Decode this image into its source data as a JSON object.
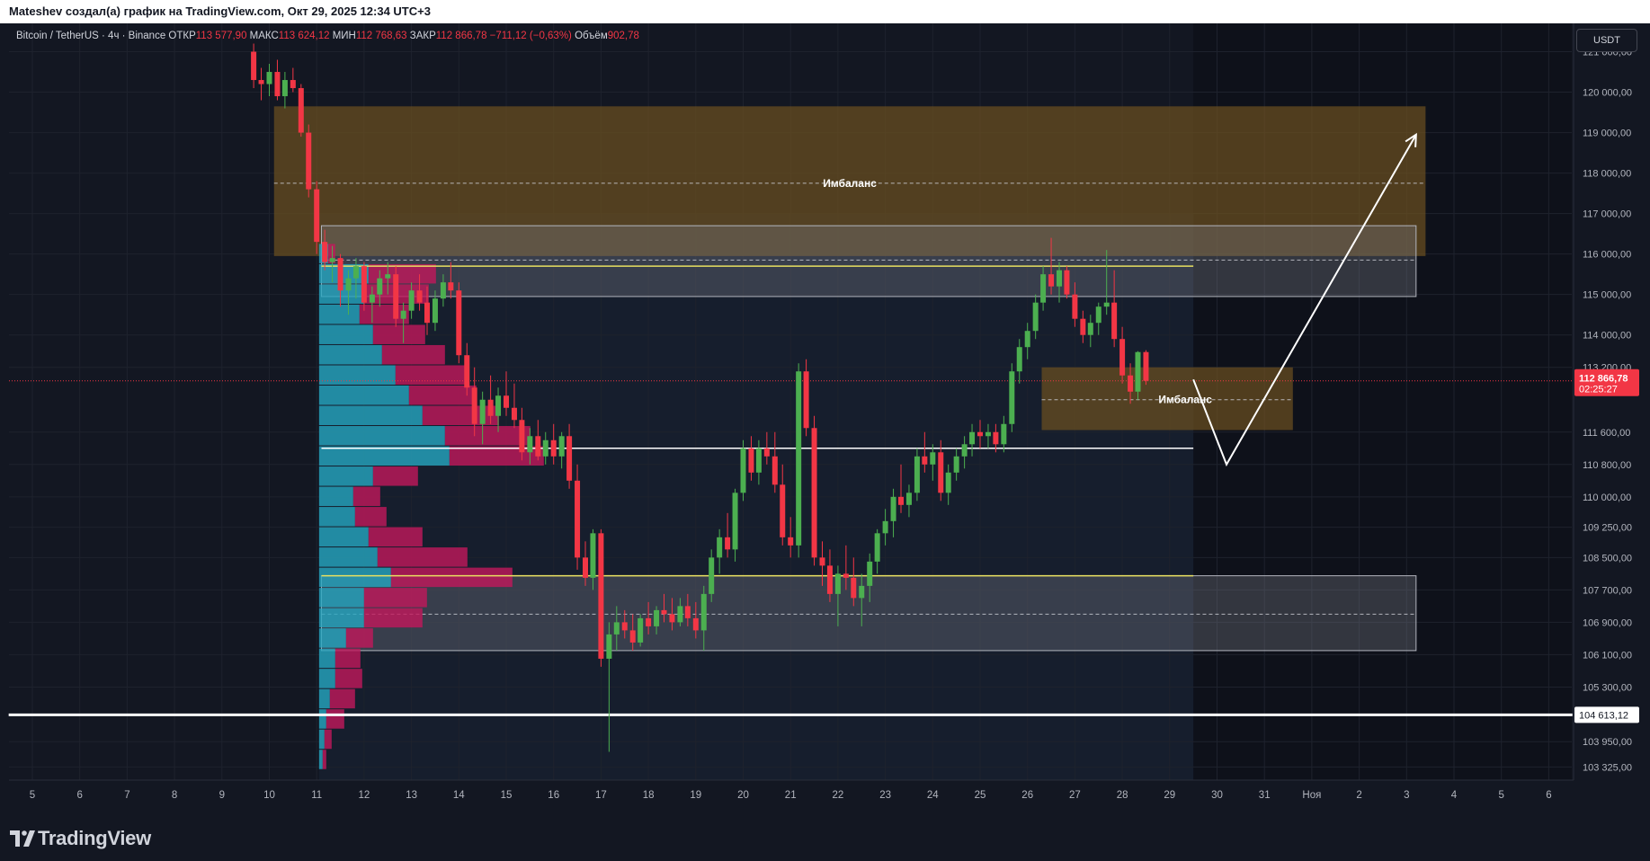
{
  "header": {
    "attribution": "Mateshev создал(а) график на TradingView.com, Окт 29, 2025 12:34 UTC+3"
  },
  "legend": {
    "symbol": "Bitcoin / TetherUS · 4ч · Binance",
    "open_label": "ОТКР",
    "open_value": "113 577,90",
    "high_label": "МАКС",
    "high_value": "113 624,12",
    "low_label": "МИН",
    "low_value": "112 768,63",
    "close_label": "ЗАКР",
    "close_value": "112 866,78",
    "change": "−711,12 (−0,63%)",
    "volume_label": "Объём",
    "volume_value": "902,78"
  },
  "currency_button": "USDT",
  "price_badge": {
    "value": "112 866,78",
    "timer": "02:25:27"
  },
  "support_badge": "104 613,12",
  "footer": {
    "brand": "TradingView"
  },
  "colors": {
    "up": "#4caf50",
    "down": "#f23645",
    "background": "#131722",
    "zone": "#6b4f20",
    "gray_zone": "#787b86",
    "vp_up": "#26a6c0",
    "vp_down": "#c2185b"
  },
  "chart_data": {
    "type": "candlestick",
    "timeframe": "4ч",
    "ylim": [
      103000,
      121700
    ],
    "y_ticks": [
      "121 000,00",
      "120 000,00",
      "119 000,00",
      "118 000,00",
      "117 000,00",
      "116 000,00",
      "115 000,00",
      "114 000,00",
      "113 200,00",
      "111 600,00",
      "110 800,00",
      "110 000,00",
      "109 250,00",
      "108 500,00",
      "107 700,00",
      "106 900,00",
      "106 100,00",
      "105 300,00",
      "103 950,00",
      "103 325,00"
    ],
    "y_tick_values": [
      121000,
      120000,
      119000,
      118000,
      117000,
      116000,
      115000,
      114000,
      113200,
      111600,
      110800,
      110000,
      109250,
      108500,
      107700,
      106900,
      106100,
      105300,
      103950,
      103325
    ],
    "x_ticks": [
      "5",
      "6",
      "7",
      "8",
      "9",
      "10",
      "11",
      "12",
      "13",
      "14",
      "15",
      "16",
      "17",
      "18",
      "19",
      "20",
      "21",
      "22",
      "23",
      "24",
      "25",
      "26",
      "27",
      "28",
      "29",
      "30",
      "31",
      "Ноя",
      "2",
      "3",
      "4",
      "5",
      "6"
    ],
    "x_tick_days": [
      5,
      6,
      7,
      8,
      9,
      10,
      11,
      12,
      13,
      14,
      15,
      16,
      17,
      18,
      19,
      20,
      21,
      22,
      23,
      24,
      25,
      26,
      27,
      28,
      29,
      30,
      31,
      32,
      33,
      34,
      35,
      36,
      37
    ],
    "current_price": 112866.78,
    "support_level": 104613.12,
    "zones": [
      {
        "label": "Имбаланс",
        "x_start": 10.1,
        "x_end": 34.4,
        "top": 119650,
        "bottom": 115950,
        "mid": 117750,
        "color": "brown"
      },
      {
        "label": "",
        "x_start": 11.1,
        "x_end": 34.2,
        "top": 116700,
        "bottom": 114950,
        "mid": 115850,
        "color": "gray"
      },
      {
        "label": "Имбаланс",
        "x_start": 26.3,
        "x_end": 31.6,
        "top": 113200,
        "bottom": 111650,
        "mid": 112400,
        "color": "brown"
      },
      {
        "label": "",
        "x_start": 11.1,
        "x_end": 34.2,
        "top": 108050,
        "bottom": 106200,
        "mid": 107100,
        "color": "gray"
      }
    ],
    "lines": [
      {
        "y": 115700,
        "x_start": 11.1,
        "x_end": 29.5,
        "color": "yellow"
      },
      {
        "y": 111200,
        "x_start": 11.1,
        "x_end": 29.5,
        "color": "white"
      },
      {
        "y": 108050,
        "x_start": 11.1,
        "x_end": 29.5,
        "color": "yellow"
      },
      {
        "y": 104613.12,
        "x_start": 4.5,
        "x_end": 37.5,
        "color": "white"
      }
    ],
    "projection": [
      [
        29.5,
        112900
      ],
      [
        30.2,
        110800
      ],
      [
        34.2,
        118950
      ]
    ],
    "candles": [
      [
        9.67,
        121000,
        121200,
        120100,
        120300
      ],
      [
        9.83,
        120300,
        120600,
        119800,
        120200
      ],
      [
        10.0,
        120200,
        120700,
        119900,
        120500
      ],
      [
        10.17,
        120500,
        120800,
        119800,
        119900
      ],
      [
        10.33,
        119900,
        120500,
        119600,
        120300
      ],
      [
        10.5,
        120300,
        120600,
        120000,
        120100
      ],
      [
        10.67,
        120100,
        120200,
        118900,
        119000
      ],
      [
        10.83,
        119000,
        119200,
        117400,
        117600
      ],
      [
        11.0,
        117600,
        117800,
        116000,
        116300
      ],
      [
        11.17,
        116300,
        116600,
        115600,
        115800
      ],
      [
        11.33,
        115800,
        116200,
        115300,
        115900
      ],
      [
        11.5,
        115900,
        116000,
        114700,
        115100
      ],
      [
        11.67,
        115100,
        115600,
        114500,
        115400
      ],
      [
        11.83,
        115400,
        115900,
        114900,
        115700
      ],
      [
        12.0,
        115700,
        115800,
        114600,
        114800
      ],
      [
        12.17,
        114800,
        115200,
        114300,
        115000
      ],
      [
        12.33,
        115000,
        115600,
        114700,
        115400
      ],
      [
        12.5,
        115400,
        115800,
        115000,
        115500
      ],
      [
        12.67,
        115500,
        115700,
        114200,
        114400
      ],
      [
        12.83,
        114400,
        114800,
        113800,
        114600
      ],
      [
        13.0,
        114600,
        115300,
        114400,
        115100
      ],
      [
        13.17,
        115100,
        115500,
        114600,
        114800
      ],
      [
        13.33,
        114800,
        115200,
        114000,
        114300
      ],
      [
        13.5,
        114300,
        115100,
        114100,
        114900
      ],
      [
        13.67,
        114900,
        115500,
        114700,
        115300
      ],
      [
        13.83,
        115300,
        115800,
        114900,
        115100
      ],
      [
        14.0,
        115100,
        115300,
        113300,
        113500
      ],
      [
        14.17,
        113500,
        113800,
        112500,
        112700
      ],
      [
        14.33,
        112700,
        113200,
        111500,
        111800
      ],
      [
        14.5,
        111800,
        112600,
        111300,
        112400
      ],
      [
        14.67,
        112400,
        113000,
        111800,
        112000
      ],
      [
        14.83,
        112000,
        112700,
        111600,
        112500
      ],
      [
        15.0,
        112500,
        113100,
        112000,
        112200
      ],
      [
        15.17,
        112200,
        112800,
        111700,
        111900
      ],
      [
        15.33,
        111900,
        112200,
        110900,
        111100
      ],
      [
        15.5,
        111100,
        111700,
        110800,
        111500
      ],
      [
        15.67,
        111500,
        111900,
        110900,
        111000
      ],
      [
        15.83,
        111000,
        111600,
        110800,
        111400
      ],
      [
        16.0,
        111400,
        111800,
        110800,
        111000
      ],
      [
        16.17,
        111000,
        111600,
        110700,
        111500
      ],
      [
        16.33,
        111500,
        111800,
        110200,
        110400
      ],
      [
        16.5,
        110400,
        110800,
        108200,
        108500
      ],
      [
        16.67,
        108500,
        108900,
        107800,
        108000
      ],
      [
        16.83,
        108000,
        109200,
        107700,
        109100
      ],
      [
        17.0,
        109100,
        109200,
        105800,
        106000
      ],
      [
        17.17,
        106000,
        106900,
        103700,
        106600
      ],
      [
        17.33,
        106600,
        107300,
        106200,
        106900
      ],
      [
        17.5,
        106900,
        107200,
        106500,
        106700
      ],
      [
        17.67,
        106700,
        107100,
        106200,
        106400
      ],
      [
        17.83,
        106400,
        107100,
        106300,
        107000
      ],
      [
        18.0,
        107000,
        107400,
        106600,
        106800
      ],
      [
        18.17,
        106800,
        107300,
        106600,
        107200
      ],
      [
        18.33,
        107200,
        107600,
        106900,
        107100
      ],
      [
        18.5,
        107100,
        107500,
        106700,
        106900
      ],
      [
        18.67,
        106900,
        107500,
        106800,
        107300
      ],
      [
        18.83,
        107300,
        107600,
        106800,
        107000
      ],
      [
        19.0,
        107000,
        107400,
        106500,
        106700
      ],
      [
        19.17,
        106700,
        107800,
        106200,
        107600
      ],
      [
        19.33,
        107600,
        108700,
        107400,
        108500
      ],
      [
        19.5,
        108500,
        109200,
        108100,
        109000
      ],
      [
        19.67,
        109000,
        109600,
        108500,
        108700
      ],
      [
        19.83,
        108700,
        110200,
        108400,
        110100
      ],
      [
        20.0,
        110100,
        111400,
        109900,
        111200
      ],
      [
        20.17,
        111200,
        111500,
        110400,
        110600
      ],
      [
        20.33,
        110600,
        111400,
        110300,
        111200
      ],
      [
        20.5,
        111200,
        111600,
        110800,
        111000
      ],
      [
        20.67,
        111000,
        111600,
        110100,
        110300
      ],
      [
        20.83,
        110300,
        110800,
        108800,
        109000
      ],
      [
        21.0,
        109000,
        109500,
        108500,
        108800
      ],
      [
        21.17,
        108800,
        113300,
        108500,
        113100
      ],
      [
        21.33,
        113100,
        113400,
        111500,
        111700
      ],
      [
        21.5,
        111700,
        112000,
        108300,
        108500
      ],
      [
        21.67,
        108500,
        108900,
        107800,
        108300
      ],
      [
        21.83,
        108300,
        108700,
        107400,
        107600
      ],
      [
        22.0,
        107600,
        108300,
        106800,
        108100
      ],
      [
        22.17,
        108100,
        108800,
        107700,
        108000
      ],
      [
        22.33,
        108000,
        108500,
        107300,
        107500
      ],
      [
        22.5,
        107500,
        108100,
        106800,
        107800
      ],
      [
        22.67,
        107800,
        108600,
        107400,
        108400
      ],
      [
        22.83,
        108400,
        109200,
        108100,
        109100
      ],
      [
        23.0,
        109100,
        109700,
        108800,
        109400
      ],
      [
        23.17,
        109400,
        110200,
        109000,
        110000
      ],
      [
        23.33,
        110000,
        110800,
        109600,
        109800
      ],
      [
        23.5,
        109800,
        110300,
        109500,
        110100
      ],
      [
        23.67,
        110100,
        111200,
        109900,
        111000
      ],
      [
        23.83,
        111000,
        111600,
        110600,
        110800
      ],
      [
        24.0,
        110800,
        111300,
        110400,
        111100
      ],
      [
        24.17,
        111100,
        111400,
        109900,
        110100
      ],
      [
        24.33,
        110100,
        110800,
        109800,
        110600
      ],
      [
        24.5,
        110600,
        111200,
        110400,
        111000
      ],
      [
        24.67,
        111000,
        111500,
        110700,
        111300
      ],
      [
        24.83,
        111300,
        111800,
        111000,
        111600
      ],
      [
        25.0,
        111600,
        111900,
        111200,
        111500
      ],
      [
        25.17,
        111500,
        111800,
        111200,
        111600
      ],
      [
        25.33,
        111600,
        111800,
        111100,
        111300
      ],
      [
        25.5,
        111300,
        112000,
        111100,
        111800
      ],
      [
        25.67,
        111800,
        113300,
        111600,
        113100
      ],
      [
        25.83,
        113100,
        113900,
        112800,
        113700
      ],
      [
        26.0,
        113700,
        114300,
        113400,
        114100
      ],
      [
        26.17,
        114100,
        115000,
        113900,
        114800
      ],
      [
        26.33,
        114800,
        115700,
        114600,
        115500
      ],
      [
        26.5,
        115500,
        116400,
        115000,
        115200
      ],
      [
        26.67,
        115200,
        115800,
        114800,
        115600
      ],
      [
        26.83,
        115600,
        115700,
        114900,
        115000
      ],
      [
        27.0,
        115000,
        115300,
        114200,
        114400
      ],
      [
        27.17,
        114400,
        114600,
        113800,
        114000
      ],
      [
        27.33,
        114000,
        114500,
        113700,
        114300
      ],
      [
        27.5,
        114300,
        114800,
        114000,
        114700
      ],
      [
        27.67,
        114700,
        116100,
        114500,
        114800
      ],
      [
        27.83,
        114800,
        115600,
        113700,
        113900
      ],
      [
        28.0,
        113900,
        114200,
        112800,
        113000
      ],
      [
        28.17,
        113000,
        113300,
        112300,
        112600
      ],
      [
        28.33,
        112600,
        113600,
        112400,
        113577.9
      ],
      [
        28.5,
        113577.9,
        113624.12,
        112768.63,
        112866.78
      ]
    ],
    "volume_profile": [
      {
        "price": 116000,
        "up": 10,
        "down": 8
      },
      {
        "price": 115500,
        "up": 55,
        "down": 75
      },
      {
        "price": 115000,
        "up": 50,
        "down": 72
      },
      {
        "price": 114500,
        "up": 45,
        "down": 55
      },
      {
        "price": 114000,
        "up": 60,
        "down": 58
      },
      {
        "price": 113500,
        "up": 70,
        "down": 70
      },
      {
        "price": 113000,
        "up": 85,
        "down": 80
      },
      {
        "price": 112500,
        "up": 100,
        "down": 75
      },
      {
        "price": 112000,
        "up": 115,
        "down": 85
      },
      {
        "price": 111500,
        "up": 140,
        "down": 95
      },
      {
        "price": 111000,
        "up": 145,
        "down": 105
      },
      {
        "price": 110500,
        "up": 60,
        "down": 50
      },
      {
        "price": 110000,
        "up": 38,
        "down": 30
      },
      {
        "price": 109500,
        "up": 40,
        "down": 35
      },
      {
        "price": 109000,
        "up": 55,
        "down": 60
      },
      {
        "price": 108500,
        "up": 65,
        "down": 100
      },
      {
        "price": 108000,
        "up": 80,
        "down": 135
      },
      {
        "price": 107500,
        "up": 50,
        "down": 70
      },
      {
        "price": 107000,
        "up": 50,
        "down": 65
      },
      {
        "price": 106500,
        "up": 30,
        "down": 30
      },
      {
        "price": 106000,
        "up": 18,
        "down": 28
      },
      {
        "price": 105500,
        "up": 18,
        "down": 30
      },
      {
        "price": 105000,
        "up": 12,
        "down": 28
      },
      {
        "price": 104500,
        "up": 8,
        "down": 20
      },
      {
        "price": 104000,
        "up": 6,
        "down": 8
      },
      {
        "price": 103500,
        "up": 4,
        "down": 4
      }
    ]
  }
}
